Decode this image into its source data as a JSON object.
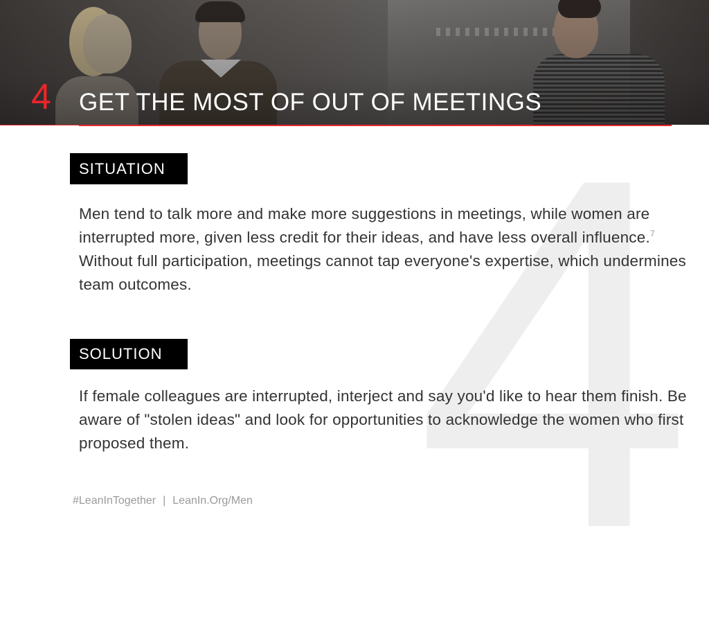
{
  "header": {
    "number": "4",
    "title": "GET THE MOST OF OUT OF MEETINGS"
  },
  "watermark_number": "4",
  "situation": {
    "label": "SITUATION",
    "text_before_ref": "Men tend to talk more and make more suggestions in meetings, while women are interrupted more, given less credit for their ideas, and have less overall influence.",
    "ref": "7",
    "text_after_ref": " Without full participation, meetings cannot tap everyone's expertise, which undermines team outcomes."
  },
  "solution": {
    "label": "SOLUTION",
    "text": "If female colleagues are interrupted, interject and say you'd like to hear them finish. Be aware of \"stolen ideas\" and look for opportunities to acknowledge the women who first proposed them."
  },
  "footer": {
    "hashtag": "#LeanInTogether",
    "separator": "|",
    "url": "LeanIn.Org/Men"
  },
  "colors": {
    "accent": "#e8262b",
    "label_bg": "#000000",
    "body_text": "#333333",
    "footer_text": "#9a9a9a"
  }
}
